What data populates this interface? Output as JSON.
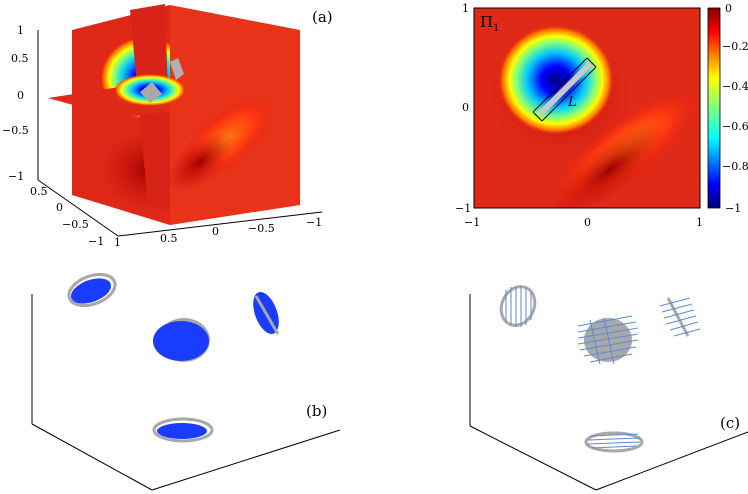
{
  "panels": {
    "a": {
      "label": "(a)",
      "ticks_z": [
        "1",
        "0.5",
        "0",
        "−0.5",
        "−1"
      ],
      "ticks_y": [
        "0.5",
        "0",
        "−0.5",
        "−1"
      ],
      "ticks_x": [
        "1",
        "0.5",
        "0",
        "−0.5",
        "−1"
      ]
    },
    "pi": {
      "title_main": "Π",
      "title_sub": "1",
      "segment_label": "L",
      "ticks_y": [
        "1",
        "0",
        "−1"
      ],
      "ticks_x": [
        "−1",
        "0",
        "1"
      ],
      "colorbar_ticks": [
        "0",
        "−0.2",
        "−0.4",
        "−0.6",
        "−0.8",
        "−1"
      ]
    },
    "b": {
      "label": "(b)"
    },
    "c": {
      "label": "(c)"
    }
  },
  "chart_data": {
    "type": "heatmap",
    "title": "Π1",
    "x_range": [
      -1,
      1
    ],
    "y_range": [
      -1,
      1
    ],
    "colorbar_range": [
      -1,
      0
    ],
    "colormap": "jet",
    "colors": {
      "jet_low": "#00007f",
      "jet_mid": "#7fff7f",
      "jet_high": "#7f0000",
      "slice_red": "#e02818",
      "disk_blue": "#1a3cff",
      "disk_gray": "#a8a8a8",
      "hatch_blue": "#5a8ad8"
    }
  }
}
